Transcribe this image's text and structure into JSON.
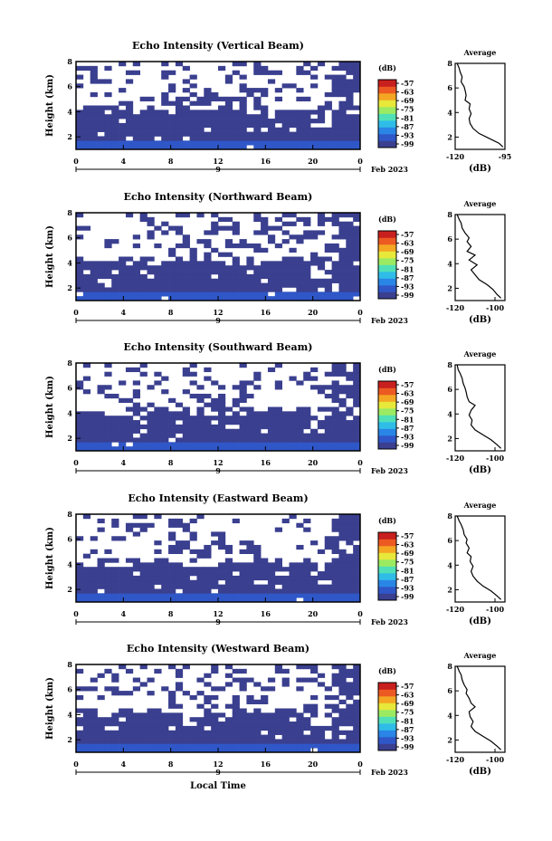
{
  "figure": {
    "time_label": "Local Time",
    "colorbar": {
      "unit_label": "(dB)",
      "ticks": [
        "-57",
        "-63",
        "-69",
        "-75",
        "-81",
        "-87",
        "-93",
        "-99"
      ],
      "colors": [
        "#3a3f8f",
        "#2f57c8",
        "#2a86e6",
        "#2fbde8",
        "#4fe0b8",
        "#9bea62",
        "#e7e83a",
        "#f4a623",
        "#ec5a22",
        "#c8201e"
      ]
    },
    "heatmap_colors": {
      "strong_echo": "#3a3f8f",
      "near_ground": "#2f57c8",
      "no_echo": "#ffffff"
    }
  },
  "chart_data": [
    {
      "type": "heatmap",
      "title": "Echo Intensity (Vertical Beam)",
      "xlabel": "",
      "ylabel": "Height (km)",
      "xlim": [
        0,
        24
      ],
      "ylim": [
        1,
        8
      ],
      "xticks": [
        "0",
        "4",
        "8",
        "12",
        "16",
        "20",
        "0"
      ],
      "yticks": [
        "2",
        "4",
        "6",
        "8"
      ],
      "date_labels": [
        "9",
        "Feb 2023"
      ],
      "colorbar_ticks": [
        "-57",
        "-63",
        "-69",
        "-75",
        "-81",
        "-87",
        "-93",
        "-99"
      ],
      "profile": {
        "title": "Average",
        "xlabel": "(dB)",
        "xlim": [
          -120,
          -95
        ],
        "xticks": [
          "-120",
          "-95"
        ],
        "ylim": [
          1,
          8
        ],
        "yticks": [
          "2",
          "4",
          "6",
          "8"
        ],
        "x": [
          -119,
          -118,
          -117.5,
          -116.5,
          -117,
          -115.5,
          -115,
          -114.5,
          -115,
          -112.5,
          -113,
          -112,
          -113,
          -112.5,
          -111,
          -108,
          -103,
          -98,
          -96
        ],
        "y": [
          8.0,
          7.6,
          7.3,
          6.9,
          6.5,
          6.1,
          5.8,
          5.4,
          5.0,
          4.7,
          4.3,
          3.9,
          3.5,
          3.1,
          2.7,
          2.3,
          1.9,
          1.5,
          1.2
        ]
      }
    },
    {
      "type": "heatmap",
      "title": "Echo Intensity (Northward Beam)",
      "xlabel": "",
      "ylabel": "Height (km)",
      "xlim": [
        0,
        24
      ],
      "ylim": [
        1,
        8
      ],
      "xticks": [
        "0",
        "4",
        "8",
        "12",
        "16",
        "20",
        "0"
      ],
      "yticks": [
        "2",
        "4",
        "6",
        "8"
      ],
      "date_labels": [
        "9",
        "Feb 2023"
      ],
      "colorbar_ticks": [
        "-57",
        "-63",
        "-69",
        "-75",
        "-81",
        "-87",
        "-93",
        "-99"
      ],
      "profile": {
        "title": "Average",
        "xlabel": "(dB)",
        "xlim": [
          -120,
          -95
        ],
        "xticks": [
          "-120",
          "-100"
        ],
        "ylim": [
          1,
          8
        ],
        "yticks": [
          "2",
          "4",
          "6",
          "8"
        ],
        "x": [
          -119,
          -118,
          -117,
          -116.5,
          -115,
          -113,
          -114,
          -112,
          -114,
          -110,
          -113,
          -109,
          -112,
          -110,
          -108,
          -104,
          -101,
          -99,
          -97
        ],
        "y": [
          8.0,
          7.6,
          7.3,
          6.9,
          6.5,
          6.1,
          5.8,
          5.4,
          5.0,
          4.7,
          4.3,
          3.9,
          3.5,
          3.1,
          2.7,
          2.3,
          1.9,
          1.5,
          1.2
        ]
      }
    },
    {
      "type": "heatmap",
      "title": "Echo Intensity (Southward Beam)",
      "xlabel": "",
      "ylabel": "Height (km)",
      "xlim": [
        0,
        24
      ],
      "ylim": [
        1,
        8
      ],
      "xticks": [
        "0",
        "4",
        "8",
        "12",
        "16",
        "20",
        "0"
      ],
      "yticks": [
        "2",
        "4",
        "6",
        "8"
      ],
      "date_labels": [
        "9",
        "Feb 2023"
      ],
      "colorbar_ticks": [
        "-57",
        "-63",
        "-69",
        "-75",
        "-81",
        "-87",
        "-93",
        "-99"
      ],
      "profile": {
        "title": "Average",
        "xlabel": "(dB)",
        "xlim": [
          -120,
          -95
        ],
        "xticks": [
          "-120",
          "-100"
        ],
        "ylim": [
          1,
          8
        ],
        "yticks": [
          "2",
          "4",
          "6",
          "8"
        ],
        "x": [
          -119,
          -118.5,
          -117.5,
          -116.5,
          -116,
          -115,
          -114.5,
          -114,
          -113,
          -110,
          -112,
          -113,
          -111.5,
          -112,
          -110,
          -106,
          -102,
          -99,
          -97
        ],
        "y": [
          8.0,
          7.6,
          7.3,
          6.9,
          6.5,
          6.1,
          5.8,
          5.4,
          5.0,
          4.7,
          4.3,
          3.9,
          3.5,
          3.1,
          2.7,
          2.3,
          1.9,
          1.5,
          1.2
        ]
      }
    },
    {
      "type": "heatmap",
      "title": "Echo Intensity (Eastward Beam)",
      "xlabel": "",
      "ylabel": "Height (km)",
      "xlim": [
        0,
        24
      ],
      "ylim": [
        1,
        8
      ],
      "xticks": [
        "0",
        "4",
        "8",
        "12",
        "16",
        "20",
        "0"
      ],
      "yticks": [
        "2",
        "4",
        "6",
        "8"
      ],
      "date_labels": [
        "9",
        "Feb 2023"
      ],
      "colorbar_ticks": [
        "-57",
        "-63",
        "-69",
        "-75",
        "-81",
        "-87",
        "-93",
        "-99"
      ],
      "profile": {
        "title": "Average",
        "xlabel": "(dB)",
        "xlim": [
          -120,
          -95
        ],
        "xticks": [
          "-120",
          "-100"
        ],
        "ylim": [
          1,
          8
        ],
        "yticks": [
          "2",
          "4",
          "6",
          "8"
        ],
        "x": [
          -119,
          -118,
          -117,
          -116,
          -115.5,
          -114,
          -114.5,
          -113,
          -114,
          -112,
          -112.5,
          -111,
          -112,
          -111,
          -109,
          -106,
          -102,
          -99,
          -97
        ],
        "y": [
          8.0,
          7.6,
          7.3,
          6.9,
          6.5,
          6.1,
          5.8,
          5.4,
          5.0,
          4.7,
          4.3,
          3.9,
          3.5,
          3.1,
          2.7,
          2.3,
          1.9,
          1.5,
          1.2
        ]
      }
    },
    {
      "type": "heatmap",
      "title": "Echo Intensity (Westward Beam)",
      "xlabel": "Local Time",
      "ylabel": "Height (km)",
      "xlim": [
        0,
        24
      ],
      "ylim": [
        1,
        8
      ],
      "xticks": [
        "0",
        "4",
        "8",
        "12",
        "16",
        "20",
        "0"
      ],
      "yticks": [
        "2",
        "4",
        "6",
        "8"
      ],
      "date_labels": [
        "9",
        "Feb 2023"
      ],
      "colorbar_ticks": [
        "-57",
        "-63",
        "-69",
        "-75",
        "-81",
        "-87",
        "-93",
        "-99"
      ],
      "profile": {
        "title": "Average",
        "xlabel": "(dB)",
        "xlim": [
          -120,
          -95
        ],
        "xticks": [
          "-120",
          "-100"
        ],
        "ylim": [
          1,
          8
        ],
        "yticks": [
          "2",
          "4",
          "6",
          "8"
        ],
        "x": [
          -119,
          -118,
          -117,
          -116.5,
          -115.5,
          -114,
          -114.5,
          -113,
          -112,
          -110,
          -113,
          -112.5,
          -111,
          -112,
          -110,
          -106,
          -102,
          -99,
          -97
        ],
        "y": [
          8.0,
          7.6,
          7.3,
          6.9,
          6.5,
          6.1,
          5.8,
          5.4,
          5.0,
          4.7,
          4.3,
          3.9,
          3.5,
          3.1,
          2.7,
          2.3,
          1.9,
          1.5,
          1.2
        ]
      }
    }
  ]
}
